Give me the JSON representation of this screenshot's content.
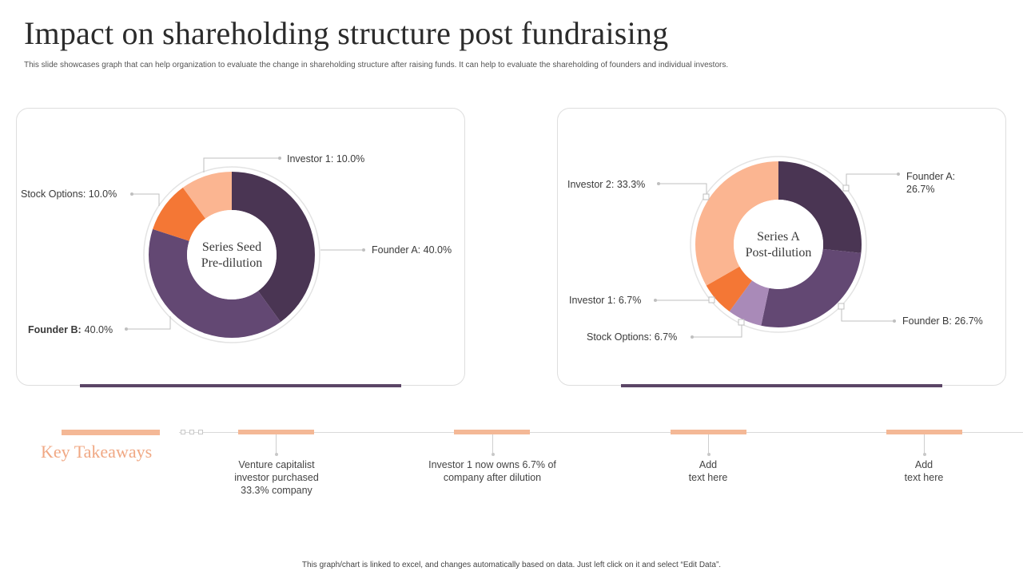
{
  "title": "Impact on shareholding structure post fundraising",
  "subtitle": "This slide showcases graph that can help organization to evaluate the change in shareholding structure after raising funds. It can help to evaluate the shareholding of founders and individual investors.",
  "chart_data": [
    {
      "type": "pie",
      "variant": "donut",
      "title": "Series Seed Pre-dilution",
      "center_label": [
        "Series Seed",
        "Pre-dilution"
      ],
      "slices": [
        {
          "name": "Founder A",
          "value": 40.0,
          "label": "Founder  A: 40.0%",
          "color": "#4a3553"
        },
        {
          "name": "Founder B",
          "value": 40.0,
          "label_name": "Founder B:",
          "label_value": "40.0%",
          "color": "#634873"
        },
        {
          "name": "Stock Options",
          "value": 10.0,
          "label": "Stock Options: 10.0%",
          "color": "#f47735"
        },
        {
          "name": "Investor 1",
          "value": 10.0,
          "label": "Investor  1: 10.0%",
          "color": "#fbb591"
        }
      ]
    },
    {
      "type": "pie",
      "variant": "donut",
      "title": "Series A Post-dilution",
      "center_label": [
        "Series A",
        "Post-dilution"
      ],
      "slices": [
        {
          "name": "Founder A",
          "value": 26.7,
          "label": [
            "Founder  A:",
            "26.7%"
          ],
          "color": "#4a3553"
        },
        {
          "name": "Founder B",
          "value": 26.7,
          "label": "Founder  B: 26.7%",
          "color": "#634873"
        },
        {
          "name": "Stock Options",
          "value": 6.7,
          "label": "Stock Options: 6.7%",
          "color": "#a98ab8"
        },
        {
          "name": "Investor 1",
          "value": 6.7,
          "label": "Investor  1: 6.7%",
          "color": "#f47735"
        },
        {
          "name": "Investor 2",
          "value": 33.3,
          "label": "Investor  2: 33.3%",
          "color": "#fbb591"
        }
      ]
    }
  ],
  "key_takeaways": {
    "heading": "Key Takeaways",
    "items": [
      "Venture capitalist\ninvestor purchased\n33.3% company",
      "Investor  1 now owns 6.7% of\ncompany after dilution",
      "Add\ntext here",
      "Add\ntext here"
    ]
  },
  "footer": "This graph/chart is linked to excel, and changes automatically based on data. Just left click on it and select “Edit Data”."
}
